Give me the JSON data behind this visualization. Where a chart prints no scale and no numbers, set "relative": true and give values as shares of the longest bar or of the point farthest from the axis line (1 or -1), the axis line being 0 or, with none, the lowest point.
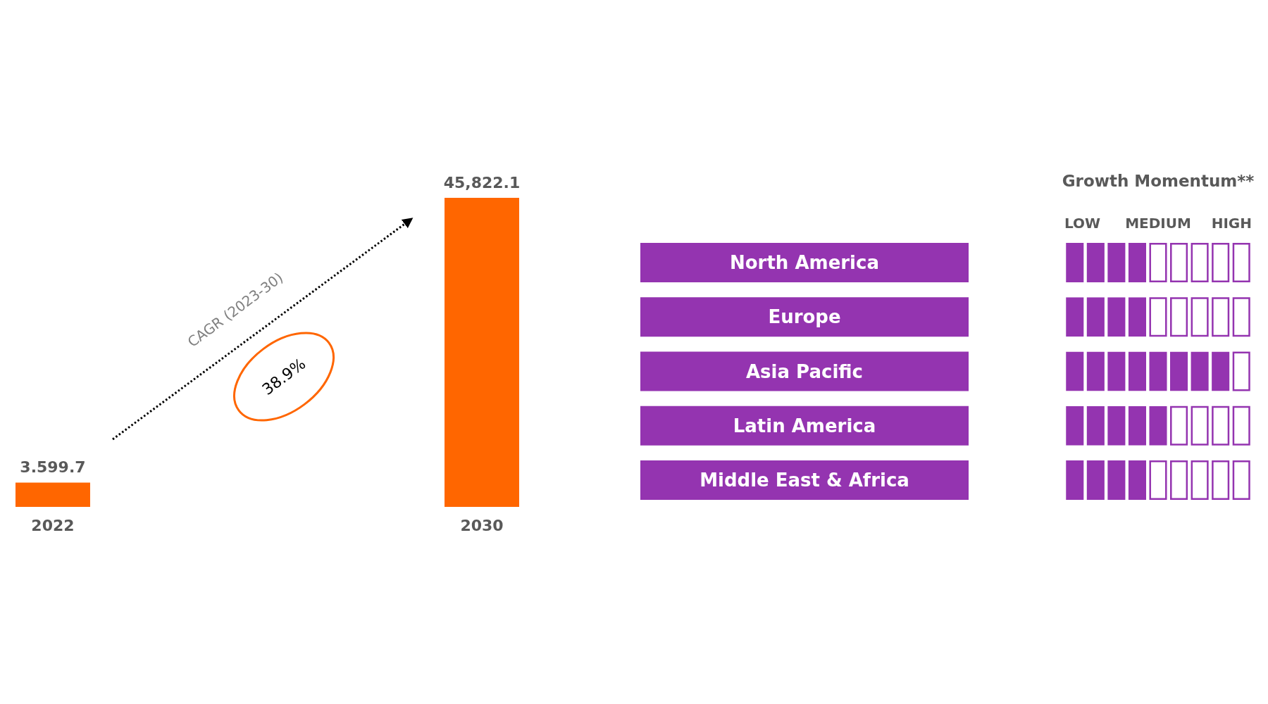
{
  "chart_data": [
    {
      "type": "bar",
      "categories": [
        "2022",
        "2030"
      ],
      "values": [
        3599.7,
        45822.1
      ],
      "value_labels": [
        "3.599.7",
        "45,822.1"
      ],
      "color": "#ff6600",
      "annotations": [
        "CAGR (2023-30)",
        "38.9%"
      ]
    },
    {
      "type": "bar",
      "orientation": "horizontal",
      "relative": true,
      "title": "Growth Momentum**",
      "categories": [
        "North America",
        "Europe",
        "Asia Pacific",
        "Latin America",
        "Middle East & Africa"
      ],
      "values": [
        0.5,
        0.5,
        1,
        0.625,
        0.5
      ],
      "color": "#9434b0",
      "annotations": [
        "LOW",
        "MEDIUM",
        "HIGH"
      ]
    }
  ]
}
